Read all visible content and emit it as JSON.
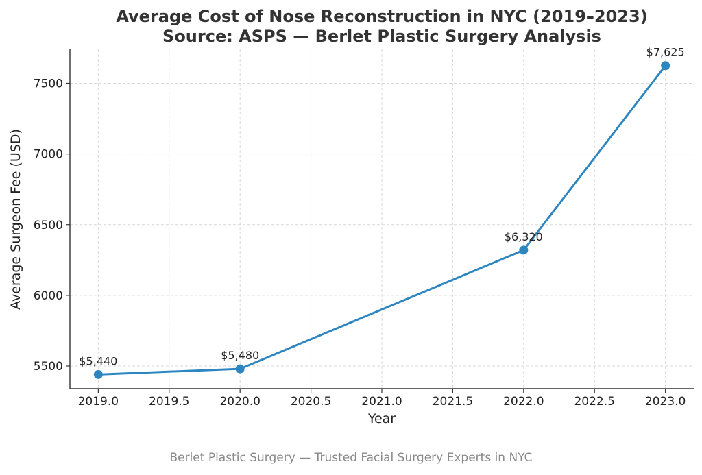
{
  "chart_data": {
    "type": "line",
    "title": "Average Cost of Nose Reconstruction in NYC (2019–2023)",
    "subtitle": "Source: ASPS — Berlet Plastic Surgery Analysis",
    "xlabel": "Year",
    "ylabel": "Average Surgeon Fee (USD)",
    "xlim": [
      2018.8,
      2023.2
    ],
    "ylim": [
      5340,
      7740
    ],
    "x_ticks": [
      2019.0,
      2019.5,
      2020.0,
      2020.5,
      2021.0,
      2021.5,
      2022.0,
      2022.5,
      2023.0
    ],
    "x_tick_labels": [
      "2019.0",
      "2019.5",
      "2020.0",
      "2020.5",
      "2021.0",
      "2021.5",
      "2022.0",
      "2022.5",
      "2023.0"
    ],
    "y_ticks": [
      5500,
      6000,
      6500,
      7000,
      7500
    ],
    "y_tick_labels": [
      "5500",
      "6000",
      "6500",
      "7000",
      "7500"
    ],
    "grid": true,
    "series": [
      {
        "x": [
          2019,
          2020,
          2022,
          2023
        ],
        "y": [
          5440,
          5480,
          6320,
          7625
        ],
        "labels": [
          "$5,440",
          "$5,480",
          "$6,320",
          "$7,625"
        ],
        "color": "#2e86c1"
      }
    ]
  },
  "footer": "Berlet Plastic Surgery — Trusted Facial Surgery Experts in NYC"
}
